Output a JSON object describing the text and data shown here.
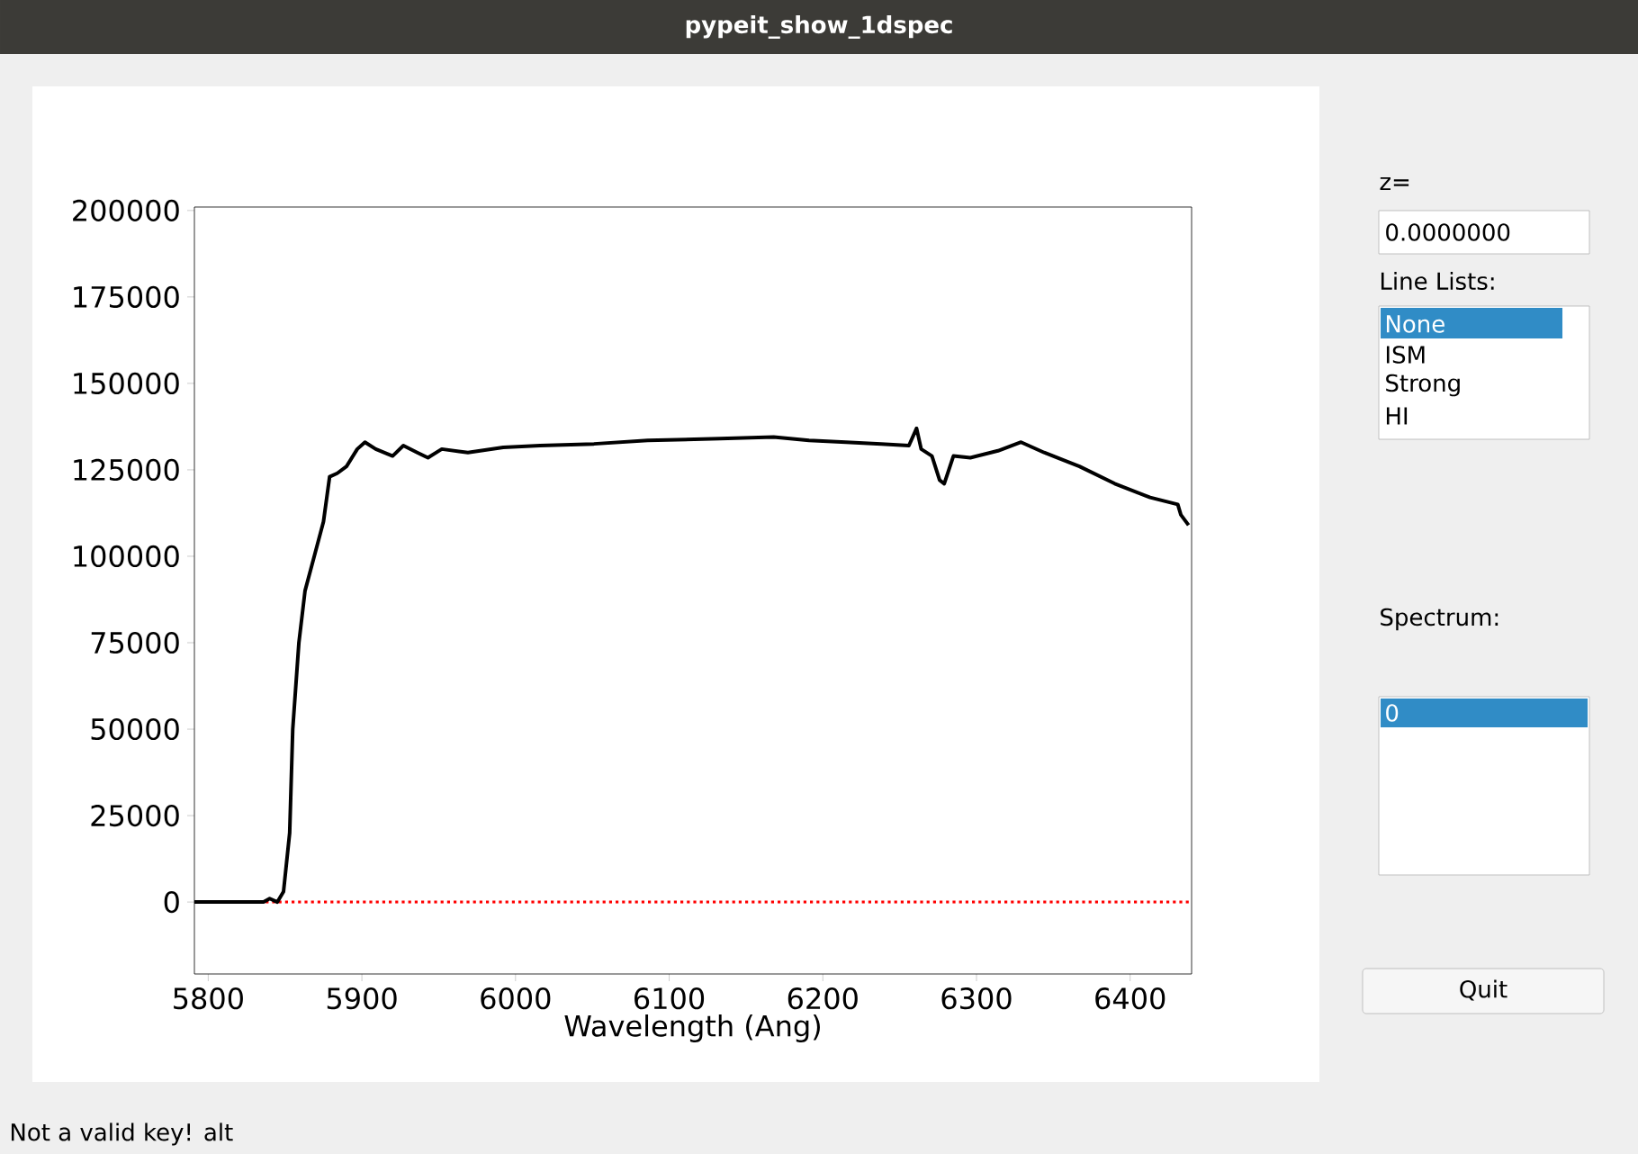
{
  "chart_data": {
    "type": "line",
    "title": "pypeit_show_1dspec",
    "xlabel": "Wavelength (Ang)",
    "x": [
      5791,
      5836,
      5840,
      5845,
      5849,
      5853,
      5855,
      5859,
      5863,
      5869,
      5875,
      5879,
      5884,
      5890,
      5897,
      5902,
      5909,
      5920,
      5927,
      5936,
      5943,
      5952,
      5969,
      5992,
      6016,
      6051,
      6086,
      6133,
      6168,
      6191,
      6215,
      6238,
      6256,
      6261,
      6264,
      6271,
      6276,
      6279,
      6285,
      6296,
      6314,
      6329,
      6344,
      6367,
      6390,
      6413,
      6431,
      6433,
      6438
    ],
    "series": [
      {
        "color": "#000000",
        "values": [
          0,
          0,
          1000,
          0,
          3000,
          20000,
          50000,
          75000,
          90000,
          100000,
          110000,
          123000,
          124000,
          126000,
          131000,
          133000,
          131000,
          129000,
          132000,
          130000,
          128500,
          131000,
          130000,
          131500,
          132000,
          132500,
          133500,
          134000,
          134500,
          133500,
          133000,
          132500,
          132000,
          137000,
          131000,
          129000,
          122000,
          121000,
          129000,
          128500,
          130500,
          133000,
          130000,
          126000,
          121000,
          117000,
          115000,
          112000,
          109000
        ]
      }
    ],
    "xlim": [
      5791,
      6440
    ],
    "ylim": [
      -20800,
      201000
    ],
    "xticks": [
      5800,
      5900,
      6000,
      6100,
      6200,
      6300,
      6400
    ],
    "yticks": [
      0,
      25000,
      50000,
      75000,
      100000,
      125000,
      150000,
      175000,
      200000
    ],
    "ref_lines": [
      {
        "axis": "y",
        "value": 0,
        "color": "#ff0000",
        "line_style": "dotted"
      }
    ],
    "grid": false,
    "marker": "none",
    "line_style": "solid",
    "annotations": [
      "z=",
      "0.0000000",
      "Line Lists:",
      "None",
      "ISM",
      "Strong",
      "HI",
      "Spectrum:",
      "0",
      "Quit",
      "Not a valid key!  alt"
    ]
  }
}
